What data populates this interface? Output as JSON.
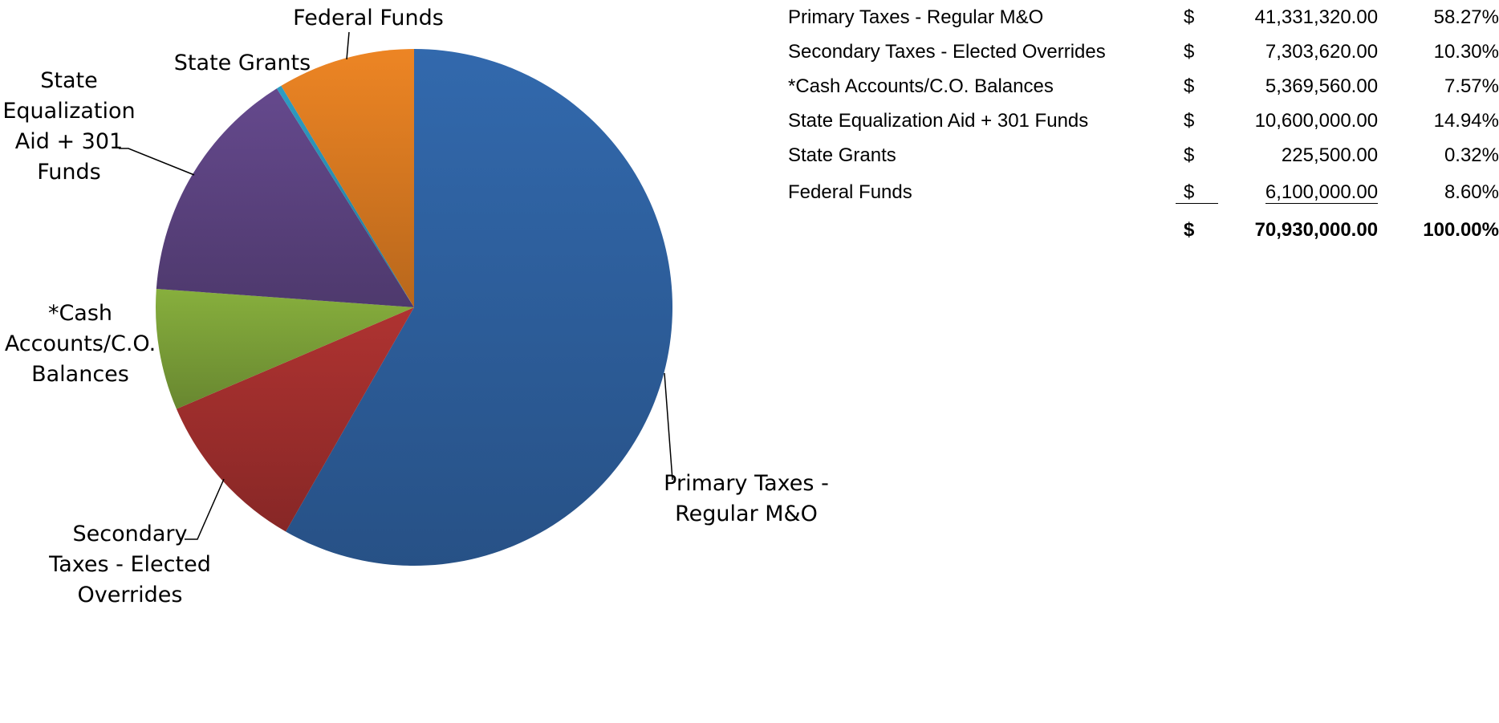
{
  "chart_data": {
    "type": "pie",
    "title": "",
    "series": [
      {
        "name": "Primary Taxes - Regular M&O",
        "value": 41331320.0,
        "percent": 58.27,
        "color": "#2f63a3",
        "label_lines": [
          "Primary Taxes -",
          "Regular M&O"
        ]
      },
      {
        "name": "Secondary Taxes - Elected Overrides",
        "value": 7303620.0,
        "percent": 10.3,
        "color": "#a5302e",
        "label_lines": [
          "Secondary",
          "Taxes - Elected",
          "Overrides"
        ]
      },
      {
        "name": "*Cash Accounts/C.O. Balances",
        "value": 5369560.0,
        "percent": 7.57,
        "color": "#7fa53a",
        "label_lines": [
          "*Cash",
          "Accounts/C.O.",
          "Balances"
        ]
      },
      {
        "name": "State Equalization Aid + 301 Funds",
        "value": 10600000.0,
        "percent": 14.94,
        "color": "#5f4585",
        "label_lines": [
          "State",
          "Equalization",
          "Aid + 301",
          "Funds"
        ]
      },
      {
        "name": "State Grants",
        "value": 225500.0,
        "percent": 0.32,
        "color": "#2b94b8",
        "label_lines": [
          "State Grants"
        ]
      },
      {
        "name": "Federal Funds",
        "value": 6100000.0,
        "percent": 8.6,
        "color": "#e07d22",
        "label_lines": [
          "Federal Funds"
        ]
      }
    ],
    "start_angle": "12 o'clock",
    "direction": "clockwise",
    "legend": "none (data labels with leader lines)"
  },
  "table": {
    "currency": "$",
    "rows": [
      {
        "name": "Primary Taxes - Regular M&O",
        "amount": "41,331,320.00",
        "percent": "58.27%"
      },
      {
        "name": "Secondary Taxes - Elected Overrides",
        "amount": "7,303,620.00",
        "percent": "10.30%"
      },
      {
        "name": "*Cash Accounts/C.O. Balances",
        "amount": "5,369,560.00",
        "percent": "7.57%"
      },
      {
        "name": "State Equalization Aid + 301 Funds",
        "amount": "10,600,000.00",
        "percent": "14.94%"
      },
      {
        "name": "State Grants",
        "amount": "225,500.00",
        "percent": "0.32%"
      },
      {
        "name": "Federal Funds",
        "amount": "6,100,000.00",
        "percent": "8.60%"
      }
    ],
    "total": {
      "amount": "70,930,000.00",
      "percent": "100.00%"
    }
  }
}
